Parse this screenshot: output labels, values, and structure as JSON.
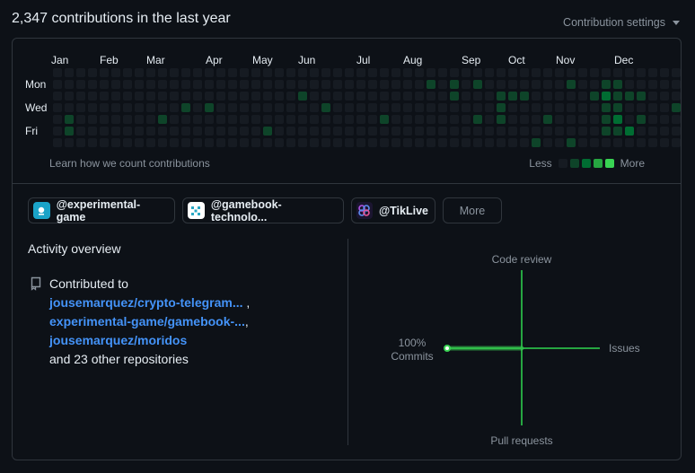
{
  "header": {
    "title": "2,347 contributions in the last year",
    "settings_label": "Contribution settings"
  },
  "calendar": {
    "months": [
      "Jan",
      "Feb",
      "Mar",
      "Apr",
      "May",
      "Jun",
      "Jul",
      "Aug",
      "Sep",
      "Oct",
      "Nov",
      "Dec"
    ],
    "days": [
      "Mon",
      "Wed",
      "Fri"
    ],
    "colors": [
      "#161b22",
      "#0e4429",
      "#006d32",
      "#26a641",
      "#39d353"
    ],
    "weeks": [
      [
        0,
        0,
        0,
        0,
        0,
        0,
        0
      ],
      [
        0,
        0,
        0,
        0,
        1,
        1,
        0
      ],
      [
        0,
        0,
        0,
        0,
        0,
        0,
        0
      ],
      [
        0,
        0,
        0,
        0,
        0,
        0,
        0
      ],
      [
        0,
        0,
        0,
        0,
        0,
        0,
        0
      ],
      [
        0,
        0,
        0,
        0,
        0,
        0,
        0
      ],
      [
        0,
        0,
        0,
        0,
        0,
        0,
        0
      ],
      [
        0,
        0,
        0,
        0,
        0,
        0,
        0
      ],
      [
        0,
        0,
        0,
        0,
        0,
        0,
        0
      ],
      [
        0,
        0,
        0,
        0,
        1,
        0,
        0
      ],
      [
        0,
        0,
        0,
        0,
        0,
        0,
        0
      ],
      [
        0,
        0,
        0,
        1,
        0,
        0,
        0
      ],
      [
        0,
        0,
        0,
        0,
        0,
        0,
        0
      ],
      [
        0,
        0,
        0,
        1,
        0,
        0,
        0
      ],
      [
        0,
        0,
        0,
        0,
        0,
        0,
        0
      ],
      [
        0,
        0,
        0,
        0,
        0,
        0,
        0
      ],
      [
        0,
        0,
        0,
        0,
        0,
        0,
        0
      ],
      [
        0,
        0,
        0,
        0,
        0,
        0,
        0
      ],
      [
        0,
        0,
        0,
        0,
        0,
        1,
        0
      ],
      [
        0,
        0,
        0,
        0,
        0,
        0,
        0
      ],
      [
        0,
        0,
        0,
        0,
        0,
        0,
        0
      ],
      [
        0,
        0,
        1,
        0,
        0,
        0,
        0
      ],
      [
        0,
        0,
        0,
        0,
        0,
        0,
        0
      ],
      [
        0,
        0,
        0,
        1,
        0,
        0,
        0
      ],
      [
        0,
        0,
        0,
        0,
        0,
        0,
        0
      ],
      [
        0,
        0,
        0,
        0,
        0,
        0,
        0
      ],
      [
        0,
        0,
        0,
        0,
        0,
        0,
        0
      ],
      [
        0,
        0,
        0,
        0,
        0,
        0,
        0
      ],
      [
        0,
        0,
        0,
        0,
        1,
        0,
        0
      ],
      [
        0,
        0,
        0,
        0,
        0,
        0,
        0
      ],
      [
        0,
        0,
        0,
        0,
        0,
        0,
        0
      ],
      [
        0,
        0,
        0,
        0,
        0,
        0,
        0
      ],
      [
        0,
        1,
        0,
        0,
        0,
        0,
        0
      ],
      [
        0,
        0,
        0,
        0,
        0,
        0,
        0
      ],
      [
        0,
        1,
        1,
        0,
        0,
        0,
        0
      ],
      [
        0,
        0,
        0,
        0,
        0,
        0,
        0
      ],
      [
        0,
        1,
        0,
        0,
        1,
        0,
        0
      ],
      [
        0,
        0,
        0,
        0,
        0,
        0,
        0
      ],
      [
        0,
        0,
        1,
        1,
        1,
        0,
        0
      ],
      [
        0,
        0,
        1,
        0,
        0,
        0,
        0
      ],
      [
        0,
        0,
        1,
        0,
        0,
        0,
        0
      ],
      [
        0,
        0,
        0,
        0,
        0,
        0,
        1
      ],
      [
        0,
        0,
        0,
        0,
        1,
        0,
        0
      ],
      [
        0,
        0,
        0,
        0,
        0,
        0,
        0
      ],
      [
        0,
        1,
        0,
        0,
        0,
        0,
        1
      ],
      [
        0,
        0,
        0,
        0,
        0,
        0,
        0
      ],
      [
        0,
        0,
        1,
        0,
        0,
        0,
        0
      ],
      [
        0,
        1,
        2,
        1,
        1,
        1,
        0
      ],
      [
        0,
        1,
        1,
        1,
        2,
        1,
        0
      ],
      [
        0,
        0,
        1,
        0,
        0,
        2,
        0
      ],
      [
        0,
        0,
        1,
        0,
        1,
        0,
        0
      ],
      [
        0,
        0,
        0,
        0,
        0,
        0,
        0
      ],
      [
        0,
        0,
        0,
        0,
        0,
        0,
        0
      ],
      [
        0,
        0,
        0,
        1,
        0,
        0,
        0
      ]
    ]
  },
  "learn_link": "Learn how we count contributions",
  "legend": {
    "less": "Less",
    "more": "More"
  },
  "orgs": [
    {
      "label": "@experimental-game"
    },
    {
      "label": "@gamebook-technolo..."
    },
    {
      "label": "@TikLive"
    }
  ],
  "more_button": "More",
  "activity": {
    "title": "Activity overview",
    "contributed_to": "Contributed to",
    "repos": [
      "jousemarquez/crypto-telegram...",
      "experimental-game/gamebook-...",
      "jousemarquez/moridos"
    ],
    "others": "and 23 other repositories",
    "sep": ","
  },
  "overview_chart": {
    "code_review_label": "Code review",
    "issues_label": "Issues",
    "pull_requests_label": "Pull requests",
    "commits_label": "Commits",
    "commits_pct": "100%",
    "axis_color": "#26a641",
    "fill_color": "#39d353"
  }
}
